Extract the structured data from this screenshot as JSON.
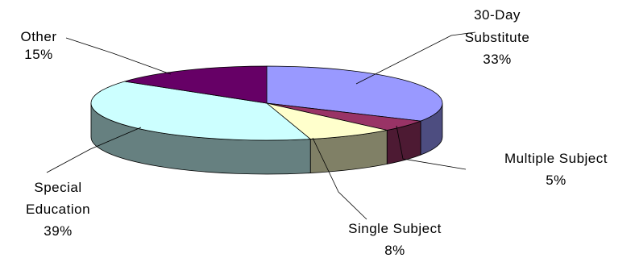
{
  "chart_data": {
    "type": "pie",
    "style": "3d",
    "title": "",
    "slices": [
      {
        "label": "30-Day Substitute",
        "label_lines": [
          "30-Day",
          "Substitute"
        ],
        "pct_text": "33%",
        "value": 33,
        "color": "#9999ff",
        "side_color": "#4d4d80"
      },
      {
        "label": "Multiple Subject",
        "label_lines": [
          "Multiple Subject"
        ],
        "pct_text": "5%",
        "value": 5,
        "color": "#993366",
        "side_color": "#4d1a33"
      },
      {
        "label": "Single Subject",
        "label_lines": [
          "Single Subject"
        ],
        "pct_text": "8%",
        "value": 8,
        "color": "#ffffcc",
        "side_color": "#808066"
      },
      {
        "label": "Special Education",
        "label_lines": [
          "Special",
          "Education"
        ],
        "pct_text": "39%",
        "value": 39,
        "color": "#ccffff",
        "side_color": "#668080"
      },
      {
        "label": "Other",
        "label_lines": [
          "Other"
        ],
        "pct_text": "15%",
        "value": 15,
        "color": "#660066",
        "side_color": "#330033"
      }
    ]
  }
}
